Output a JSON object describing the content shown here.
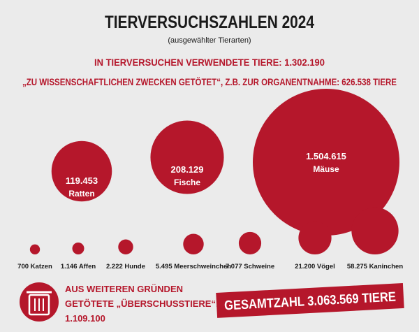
{
  "chart_data": {
    "type": "bubble",
    "title": "TIERVERSUCHSZAHLEN 2024",
    "subtitle": "(ausgewählter Tierarten)",
    "annotations": [
      "IN TIERVERSUCHEN VERWENDETE TIERE: 1.302.190",
      "„ZU WISSENSCHAFTLICHEN ZWECKEN GETÖTET“, Z.B. ZUR ORGANENTNAHME: 626.538 TIERE"
    ],
    "color": "#b5172b",
    "categories": [
      "Ratten",
      "Fische",
      "Mäuse",
      "Katzen",
      "Affen",
      "Hunde",
      "Meerschweinchen",
      "Schweine",
      "Vögel",
      "Kaninchen"
    ],
    "values": [
      119453,
      208129,
      1504615,
      700,
      1146,
      2222,
      5495,
      7077,
      21200,
      58275
    ],
    "value_labels": [
      "119.453",
      "208.129",
      "1.504.615",
      "700",
      "1.146",
      "2.222",
      "5.495",
      "7.077",
      "21.200",
      "58.275"
    ],
    "surplus_lines": [
      "AUS WEITEREN GRÜNDEN",
      "GETÖTETE „ÜBERSCHUSSTIERE“:",
      "1.109.100"
    ],
    "total": "GESAMTZAHL 3.063.569 TIERE"
  }
}
